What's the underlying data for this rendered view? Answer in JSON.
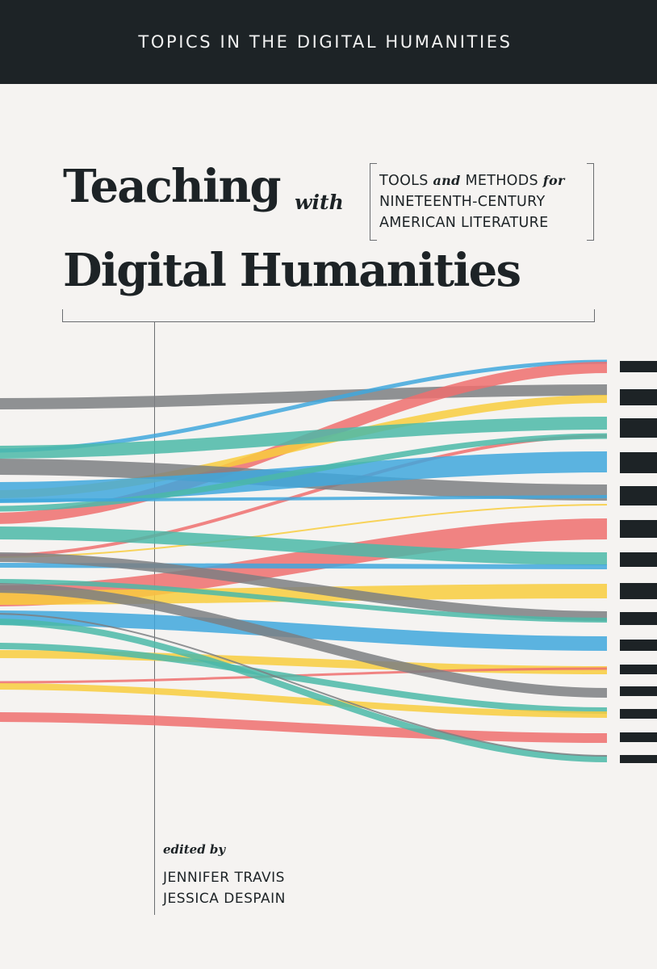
{
  "series": "TOPICS IN THE DIGITAL HUMANITIES",
  "title": {
    "line1": "Teaching",
    "connector": "with",
    "line2": "Digital Humanities"
  },
  "subtitle": {
    "line1_a": "TOOLS",
    "line1_and": "and",
    "line1_b": "METHODS",
    "line1_for": "for",
    "line2": "NINETEENTH-CENTURY",
    "line3": "AMERICAN LITERATURE"
  },
  "credits": {
    "edited_by": "edited by",
    "editors": [
      "JENNIFER TRAVIS",
      "JESSICA DESPAIN"
    ]
  },
  "colors": {
    "background": "#f5f3f1",
    "band": "#1d2326",
    "red": "#ee6f6f",
    "blue": "#3fa7dd",
    "teal": "#4bb8a8",
    "yellow": "#f8cc3e",
    "gray": "#7d7f83"
  }
}
